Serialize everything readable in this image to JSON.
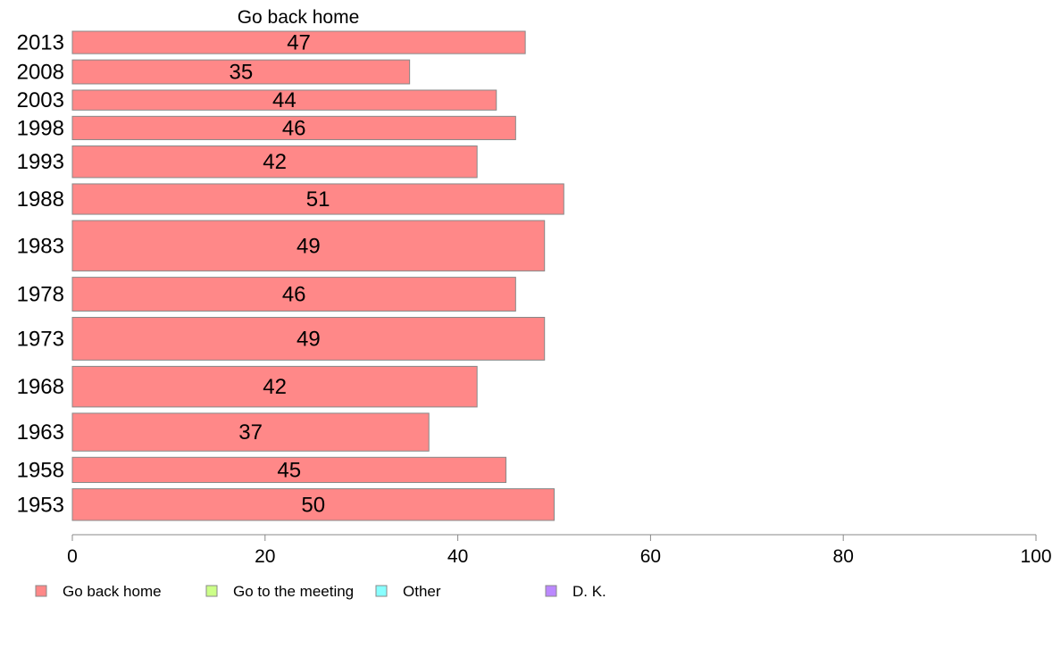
{
  "chart_data": {
    "type": "bar",
    "orientation": "horizontal",
    "title": "Go back home",
    "xlabel": "",
    "ylabel": "",
    "xlim": [
      0,
      100
    ],
    "xticks": [
      0,
      20,
      40,
      60,
      80,
      100
    ],
    "grid": false,
    "legend_position": "bottom",
    "categories": [
      "2013",
      "2008",
      "2003",
      "1998",
      "1993",
      "1988",
      "1983",
      "1978",
      "1973",
      "1968",
      "1963",
      "1958",
      "1953"
    ],
    "row_weights": [
      0.93,
      0.98,
      0.85,
      0.96,
      1.23,
      1.19,
      1.84,
      1.3,
      1.59,
      1.52,
      1.43,
      1.02,
      1.23
    ],
    "series": [
      {
        "name": "Go back home",
        "color": "#ff8888",
        "values": [
          47,
          35,
          44,
          46,
          42,
          51,
          49,
          46,
          49,
          42,
          37,
          45,
          50
        ],
        "labels": [
          "47",
          "35",
          "44",
          "46",
          "42",
          "51",
          "49",
          "46",
          "49",
          "42",
          "37",
          "45",
          "50"
        ]
      }
    ],
    "legend": [
      {
        "name": "Go back home",
        "color": "#ff8888"
      },
      {
        "name": "Go to the meeting",
        "color": "#ccff88"
      },
      {
        "name": "Other",
        "color": "#88ffff"
      },
      {
        "name": "D. K.",
        "color": "#bb88ff"
      }
    ]
  }
}
